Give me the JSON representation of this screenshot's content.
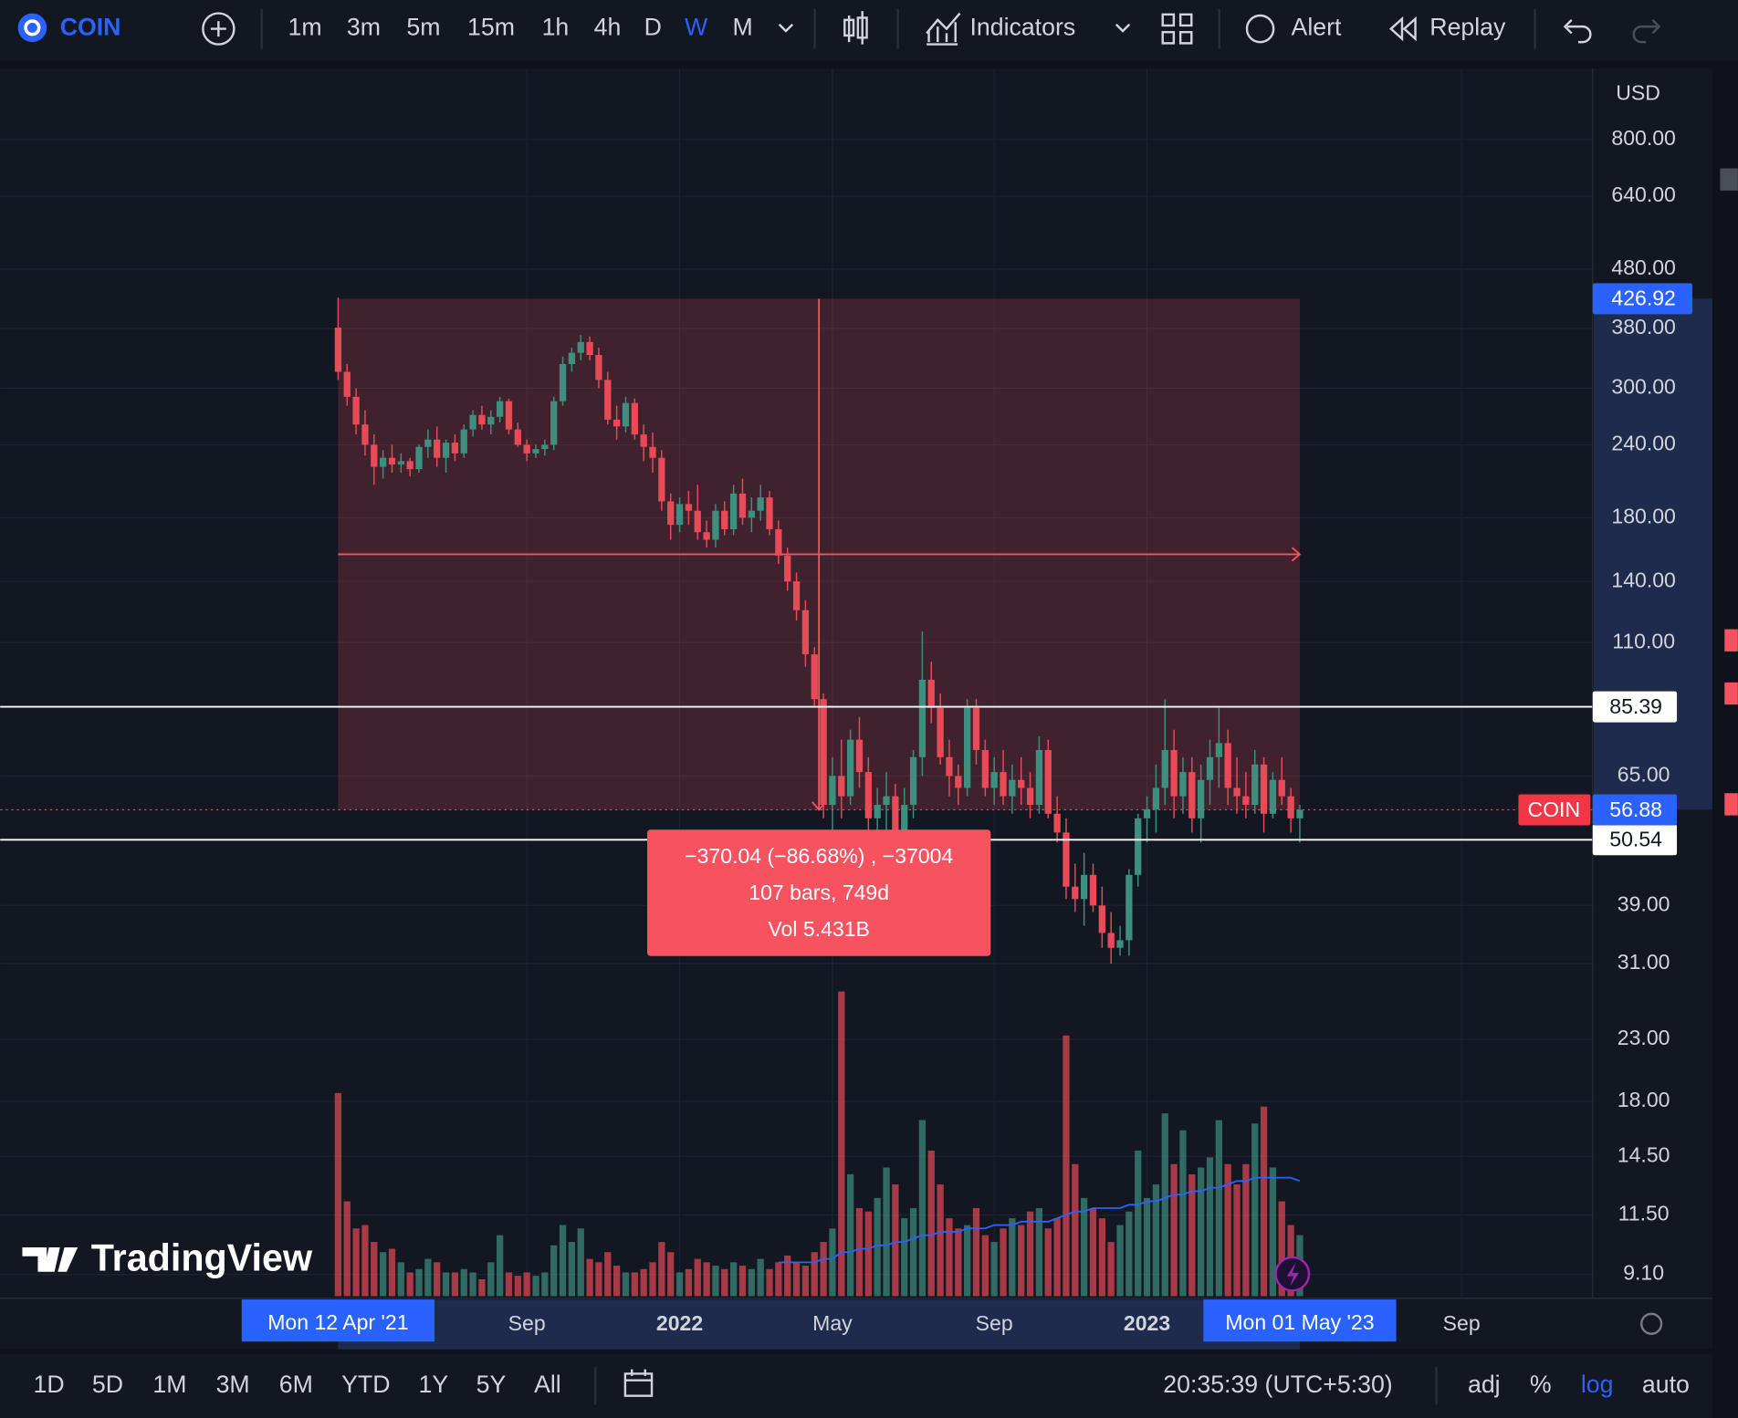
{
  "toolbar": {
    "symbol": "COIN",
    "intervals": [
      "1m",
      "3m",
      "5m",
      "15m",
      "1h",
      "4h",
      "D",
      "W",
      "M"
    ],
    "active_interval": 7,
    "buttons": [
      "Indicators",
      "Alert",
      "Replay"
    ]
  },
  "chart_data": {
    "type": "candlestick",
    "currency": "USD",
    "watermark": "TradingView",
    "log_scale": true,
    "grid": true,
    "colors": {
      "up": "#3f8f7e",
      "down": "#e84a57",
      "volume_ma": "#2962ff",
      "measure": "#f7525f"
    },
    "ylim": [
      8.28,
      1058
    ],
    "yticks": [
      {
        "value": 800,
        "label": "800.00"
      },
      {
        "value": 640,
        "label": "640.00"
      },
      {
        "value": 480,
        "label": "480.00"
      },
      {
        "value": 380,
        "label": "380.00"
      },
      {
        "value": 300,
        "label": "300.00"
      },
      {
        "value": 240,
        "label": "240.00"
      },
      {
        "value": 180,
        "label": "180.00"
      },
      {
        "value": 140,
        "label": "140.00"
      },
      {
        "value": 110,
        "label": "110.00"
      },
      {
        "value": 65,
        "label": "65.00"
      },
      {
        "value": 39,
        "label": "39.00"
      },
      {
        "value": 31,
        "label": "31.00"
      },
      {
        "value": 23,
        "label": "23.00"
      },
      {
        "value": 18,
        "label": "18.00"
      },
      {
        "value": 14.5,
        "label": "14.50"
      },
      {
        "value": 11.5,
        "label": "11.50"
      },
      {
        "value": 9.1,
        "label": "9.10"
      }
    ],
    "xlim": [
      -37.6,
      152.9
    ],
    "xticks": [
      {
        "value": 21,
        "label": "Sep"
      },
      {
        "value": 38,
        "label": "2022"
      },
      {
        "value": 55,
        "label": "May"
      },
      {
        "value": 73,
        "label": "Sep"
      },
      {
        "value": 90,
        "label": "2023"
      },
      {
        "value": 125,
        "label": "Sep"
      }
    ],
    "price_lines": [
      85.39,
      50.54
    ],
    "last_price": 56.88,
    "measure": {
      "from": 426.92,
      "to": 56.88,
      "start_label": "Mon 12 Apr '21",
      "end_label": "Mon 01 May '23",
      "lines": [
        "−370.04 (−86.68%) , −37004",
        "107 bars, 749d",
        "Vol 5.431B"
      ]
    },
    "candles": [
      [
        381,
        429,
        310,
        320
      ],
      [
        320,
        330,
        280,
        290
      ],
      [
        290,
        300,
        250,
        260
      ],
      [
        260,
        275,
        230,
        240
      ],
      [
        240,
        250,
        205,
        220
      ],
      [
        220,
        235,
        210,
        228
      ],
      [
        228,
        240,
        215,
        222
      ],
      [
        222,
        232,
        215,
        225
      ],
      [
        225,
        228,
        212,
        218
      ],
      [
        218,
        240,
        215,
        238
      ],
      [
        238,
        255,
        228,
        245
      ],
      [
        245,
        258,
        220,
        228
      ],
      [
        228,
        245,
        215,
        242
      ],
      [
        242,
        250,
        225,
        232
      ],
      [
        232,
        260,
        228,
        255
      ],
      [
        255,
        275,
        248,
        270
      ],
      [
        270,
        280,
        255,
        260
      ],
      [
        260,
        275,
        250,
        268
      ],
      [
        268,
        290,
        262,
        285
      ],
      [
        285,
        288,
        250,
        255
      ],
      [
        255,
        262,
        238,
        240
      ],
      [
        240,
        245,
        225,
        232
      ],
      [
        232,
        240,
        228,
        236
      ],
      [
        236,
        245,
        230,
        240
      ],
      [
        240,
        290,
        235,
        285
      ],
      [
        285,
        340,
        280,
        330
      ],
      [
        330,
        352,
        320,
        345
      ],
      [
        345,
        370,
        335,
        360
      ],
      [
        360,
        368,
        335,
        342
      ],
      [
        342,
        352,
        300,
        310
      ],
      [
        310,
        320,
        260,
        265
      ],
      [
        265,
        280,
        245,
        258
      ],
      [
        258,
        290,
        252,
        283
      ],
      [
        283,
        288,
        245,
        250
      ],
      [
        250,
        260,
        225,
        238
      ],
      [
        238,
        252,
        215,
        228
      ],
      [
        228,
        235,
        185,
        192
      ],
      [
        192,
        198,
        165,
        175
      ],
      [
        175,
        195,
        170,
        190
      ],
      [
        190,
        200,
        175,
        185
      ],
      [
        185,
        205,
        165,
        170
      ],
      [
        170,
        178,
        160,
        165
      ],
      [
        165,
        190,
        160,
        185
      ],
      [
        185,
        192,
        168,
        172
      ],
      [
        172,
        205,
        168,
        198
      ],
      [
        198,
        210,
        175,
        180
      ],
      [
        180,
        195,
        170,
        185
      ],
      [
        185,
        205,
        178,
        195
      ],
      [
        195,
        200,
        168,
        172
      ],
      [
        172,
        178,
        150,
        155
      ],
      [
        155,
        160,
        135,
        140
      ],
      [
        140,
        145,
        120,
        125
      ],
      [
        125,
        130,
        100,
        105
      ],
      [
        105,
        108,
        85,
        88
      ],
      [
        88,
        90,
        55,
        58
      ],
      [
        58,
        70,
        50,
        65
      ],
      [
        65,
        75,
        55,
        60
      ],
      [
        60,
        78,
        58,
        75
      ],
      [
        75,
        82,
        62,
        66
      ],
      [
        66,
        70,
        52,
        55
      ],
      [
        55,
        62,
        50,
        58
      ],
      [
        58,
        66,
        52,
        60
      ],
      [
        60,
        63,
        50,
        52
      ],
      [
        52,
        62,
        48,
        58
      ],
      [
        58,
        72,
        55,
        70
      ],
      [
        70,
        115,
        65,
        95
      ],
      [
        95,
        102,
        80,
        85
      ],
      [
        85,
        90,
        68,
        70
      ],
      [
        70,
        75,
        60,
        65
      ],
      [
        65,
        68,
        58,
        62
      ],
      [
        62,
        88,
        60,
        85
      ],
      [
        85,
        88,
        68,
        72
      ],
      [
        72,
        75,
        60,
        62
      ],
      [
        62,
        70,
        58,
        66
      ],
      [
        66,
        72,
        58,
        60
      ],
      [
        60,
        68,
        56,
        64
      ],
      [
        64,
        70,
        58,
        62
      ],
      [
        62,
        66,
        55,
        58
      ],
      [
        58,
        76,
        56,
        72
      ],
      [
        72,
        75,
        55,
        56
      ],
      [
        56,
        60,
        50,
        52
      ],
      [
        52,
        55,
        40,
        42
      ],
      [
        42,
        46,
        38,
        40
      ],
      [
        40,
        48,
        36,
        44
      ],
      [
        44,
        46,
        38,
        39
      ],
      [
        39,
        42,
        33,
        35
      ],
      [
        35,
        38,
        31,
        33
      ],
      [
        33,
        36,
        32,
        34
      ],
      [
        34,
        45,
        32,
        44
      ],
      [
        44,
        56,
        42,
        55
      ],
      [
        55,
        60,
        50,
        57
      ],
      [
        57,
        68,
        52,
        62
      ],
      [
        62,
        88,
        58,
        72
      ],
      [
        72,
        78,
        55,
        60
      ],
      [
        60,
        70,
        56,
        66
      ],
      [
        66,
        70,
        52,
        55
      ],
      [
        55,
        68,
        50,
        64
      ],
      [
        64,
        75,
        58,
        70
      ],
      [
        70,
        85,
        62,
        74
      ],
      [
        74,
        78,
        58,
        62
      ],
      [
        62,
        70,
        56,
        60
      ],
      [
        60,
        66,
        55,
        58
      ],
      [
        58,
        72,
        56,
        68
      ],
      [
        68,
        70,
        52,
        56
      ],
      [
        56,
        66,
        55,
        64
      ],
      [
        64,
        70,
        58,
        60
      ],
      [
        60,
        62,
        52,
        55
      ],
      [
        55,
        58,
        50,
        56.88
      ]
    ],
    "volumes": [
      60,
      28,
      20,
      21,
      16,
      13,
      14,
      10,
      7,
      8,
      11,
      10,
      7,
      7,
      8,
      7,
      5,
      10,
      18,
      7,
      6,
      7,
      6,
      7,
      15,
      21,
      16,
      20,
      11,
      10,
      13,
      9,
      7,
      7,
      8,
      10,
      16,
      13,
      7,
      8,
      11,
      10,
      9,
      8,
      10,
      9,
      8,
      11,
      8,
      10,
      12,
      10,
      9,
      13,
      16,
      20,
      90,
      36,
      26,
      25,
      29,
      38,
      33,
      23,
      26,
      52,
      43,
      33,
      23,
      20,
      21,
      26,
      18,
      16,
      20,
      23,
      21,
      25,
      26,
      20,
      23,
      77,
      39,
      29,
      26,
      23,
      16,
      21,
      25,
      43,
      29,
      33,
      54,
      39,
      49,
      36,
      38,
      41,
      52,
      39,
      33,
      39,
      51,
      56,
      38,
      28,
      21,
      18
    ],
    "volume_ma": [
      null,
      null,
      null,
      null,
      null,
      null,
      null,
      null,
      null,
      null,
      null,
      null,
      null,
      null,
      null,
      null,
      null,
      null,
      null,
      null,
      null,
      null,
      null,
      null,
      null,
      null,
      null,
      null,
      null,
      null,
      null,
      null,
      null,
      null,
      null,
      null,
      null,
      null,
      null,
      null,
      null,
      null,
      null,
      null,
      null,
      null,
      null,
      null,
      null,
      10,
      10,
      10,
      10,
      10,
      11,
      11,
      13,
      13,
      14,
      14,
      15,
      15,
      16,
      16,
      17,
      18,
      18,
      19,
      19,
      19,
      20,
      20,
      20,
      21,
      21,
      21,
      22,
      22,
      22,
      22,
      23,
      24,
      25,
      25,
      26,
      26,
      26,
      26,
      27,
      27,
      28,
      28,
      29,
      30,
      30,
      31,
      31,
      32,
      32,
      33,
      34,
      34,
      35,
      35,
      35,
      35,
      35,
      34
    ]
  },
  "bottom_bar": {
    "ranges": [
      "1D",
      "5D",
      "1M",
      "3M",
      "6M",
      "YTD",
      "1Y",
      "5Y",
      "All"
    ],
    "time": "20:35:39 (UTC+5:30)",
    "options": [
      "adj",
      "%",
      "log",
      "auto"
    ],
    "active_option": 2
  }
}
